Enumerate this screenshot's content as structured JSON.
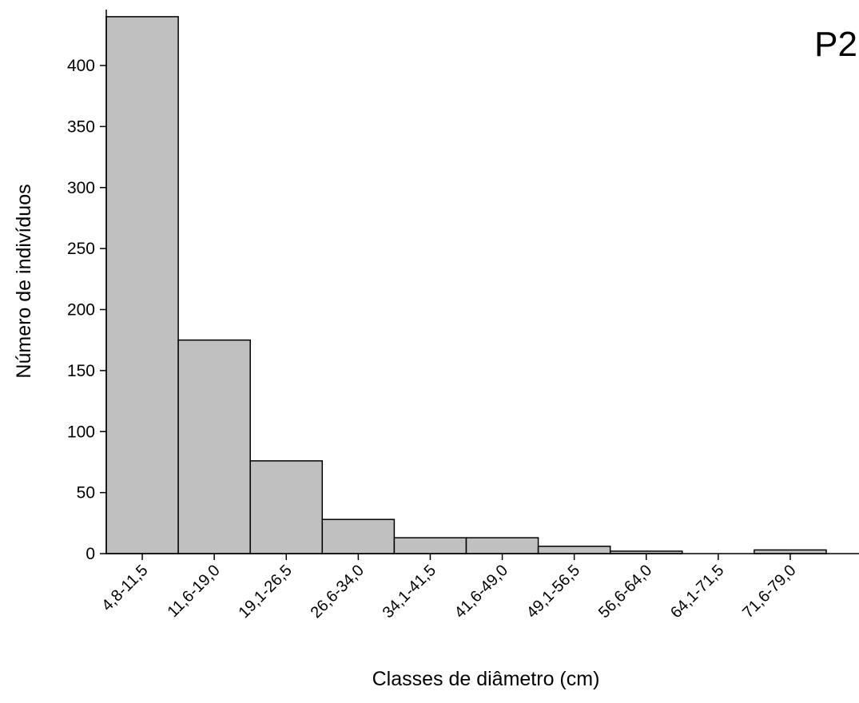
{
  "chart_data": {
    "type": "bar",
    "panel_label": "P2",
    "xlabel": "Classes de diâmetro (cm)",
    "ylabel": "Número de indivíduos",
    "categories": [
      "4,8-11,5",
      "11,6-19,0",
      "19,1-26,5",
      "26,6-34,0",
      "34,1-41,5",
      "41,6-49,0",
      "49,1-56,5",
      "56,6-64,0",
      "64,1-71,5",
      "71,6-79,0"
    ],
    "values": [
      440,
      175,
      76,
      28,
      13,
      13,
      6,
      2,
      0,
      3
    ],
    "yticks": [
      "0",
      "50",
      "100",
      "150",
      "200",
      "250",
      "300",
      "350",
      "400"
    ],
    "ylim": [
      0,
      440
    ],
    "bar_color": "#c0c0c0",
    "grid": false,
    "legend": "none"
  }
}
